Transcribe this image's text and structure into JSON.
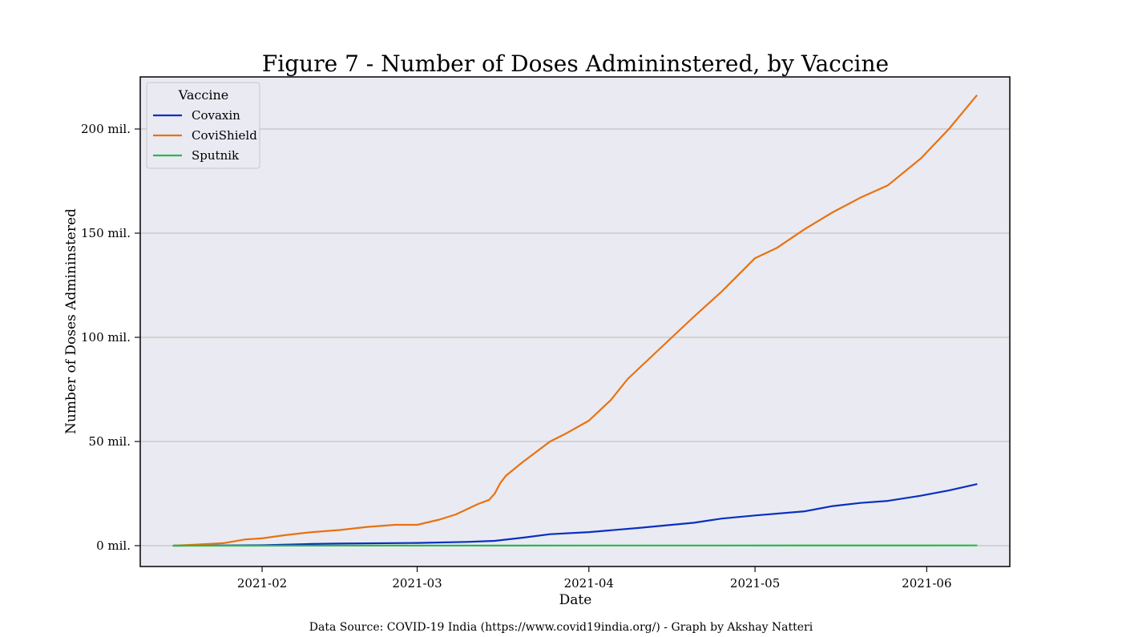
{
  "chart_data": {
    "type": "line",
    "title": "Figure 7 - Number of Doses Admininstered, by Vaccine",
    "xlabel": "Date",
    "ylabel": "Number of Doses Admininstered",
    "x_axis": "date",
    "xlim": [
      "2021-01-10",
      "2021-06-16"
    ],
    "ylim": [
      -10,
      225
    ],
    "y_unit": "mil.",
    "xticks": [
      "2021-02",
      "2021-03",
      "2021-04",
      "2021-05",
      "2021-06"
    ],
    "yticks": [
      0,
      50,
      100,
      150,
      200
    ],
    "ytick_labels": [
      "0 mil.",
      "50 mil.",
      "100 mil.",
      "150 mil.",
      "200 mil."
    ],
    "grid": "horizontal",
    "legend": {
      "title": "Vaccine",
      "placement": "top-left"
    },
    "background": "#eaeaf2",
    "series": [
      {
        "name": "Covaxin",
        "color": "#0a2fbf",
        "points": [
          [
            "2021-01-16",
            0
          ],
          [
            "2021-02-01",
            0.2
          ],
          [
            "2021-02-10",
            0.8
          ],
          [
            "2021-02-15",
            1.0
          ],
          [
            "2021-03-01",
            1.3
          ],
          [
            "2021-03-10",
            1.8
          ],
          [
            "2021-03-15",
            2.3
          ],
          [
            "2021-03-20",
            3.8
          ],
          [
            "2021-03-25",
            5.5
          ],
          [
            "2021-04-01",
            6.5
          ],
          [
            "2021-04-10",
            8.5
          ],
          [
            "2021-04-20",
            11.0
          ],
          [
            "2021-04-25",
            13.0
          ],
          [
            "2021-05-01",
            14.5
          ],
          [
            "2021-05-10",
            16.5
          ],
          [
            "2021-05-15",
            19.0
          ],
          [
            "2021-05-20",
            20.5
          ],
          [
            "2021-05-25",
            21.5
          ],
          [
            "2021-05-31",
            24.0
          ],
          [
            "2021-06-05",
            26.5
          ],
          [
            "2021-06-10",
            29.5
          ]
        ]
      },
      {
        "name": "CoviShield",
        "color": "#e8720f",
        "points": [
          [
            "2021-01-16",
            0
          ],
          [
            "2021-01-20",
            0.5
          ],
          [
            "2021-01-25",
            1.2
          ],
          [
            "2021-01-29",
            3.0
          ],
          [
            "2021-02-01",
            3.5
          ],
          [
            "2021-02-05",
            5.0
          ],
          [
            "2021-02-10",
            6.5
          ],
          [
            "2021-02-15",
            7.5
          ],
          [
            "2021-02-20",
            9.0
          ],
          [
            "2021-02-25",
            10.0
          ],
          [
            "2021-03-01",
            10.0
          ],
          [
            "2021-03-05",
            12.5
          ],
          [
            "2021-03-08",
            15.0
          ],
          [
            "2021-03-10",
            17.5
          ],
          [
            "2021-03-12",
            20.0
          ],
          [
            "2021-03-14",
            22.0
          ],
          [
            "2021-03-15",
            25.0
          ],
          [
            "2021-03-16",
            30.0
          ],
          [
            "2021-03-17",
            33.5
          ],
          [
            "2021-03-20",
            40.0
          ],
          [
            "2021-03-25",
            50.0
          ],
          [
            "2021-03-28",
            54.0
          ],
          [
            "2021-04-01",
            60.0
          ],
          [
            "2021-04-05",
            70.0
          ],
          [
            "2021-04-08",
            80.0
          ],
          [
            "2021-04-12",
            90.0
          ],
          [
            "2021-04-16",
            100.0
          ],
          [
            "2021-04-20",
            110.0
          ],
          [
            "2021-04-25",
            122.0
          ],
          [
            "2021-05-01",
            138.0
          ],
          [
            "2021-05-05",
            143.0
          ],
          [
            "2021-05-10",
            152.0
          ],
          [
            "2021-05-15",
            160.0
          ],
          [
            "2021-05-20",
            167.0
          ],
          [
            "2021-05-25",
            173.0
          ],
          [
            "2021-05-31",
            186.0
          ],
          [
            "2021-06-05",
            200.0
          ],
          [
            "2021-06-10",
            216.0
          ]
        ]
      },
      {
        "name": "Sputnik",
        "color": "#2ab84a",
        "points": [
          [
            "2021-01-16",
            0
          ],
          [
            "2021-06-10",
            0.1
          ]
        ]
      }
    ]
  },
  "footer": {
    "source": "Data Source:  COVID-19 India (https://www.covid19india.org/) - Graph by Akshay Natteri"
  }
}
